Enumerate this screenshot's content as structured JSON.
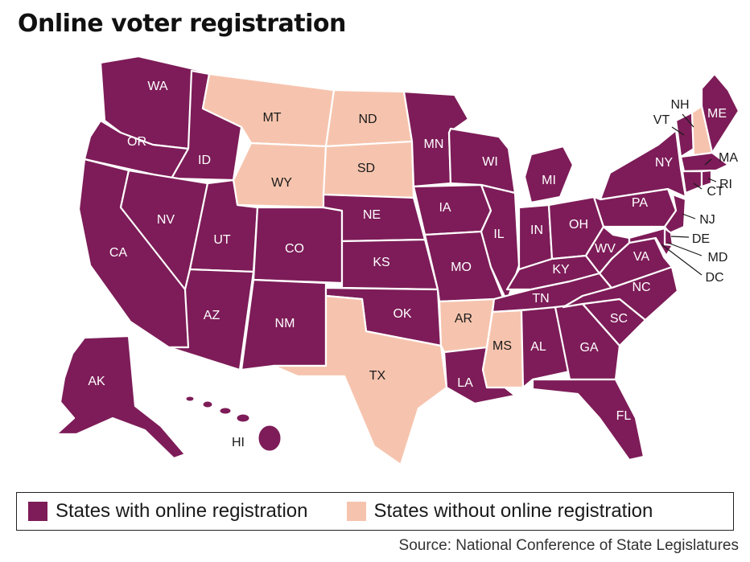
{
  "title": "Online voter registration",
  "colors": {
    "with": "#7d1c58",
    "without": "#f6c4ae"
  },
  "legend": {
    "with": "States with online registration",
    "without": "States without online registration"
  },
  "source": "Source: National Conference of State Legislatures",
  "states_without": [
    "MT",
    "ND",
    "WY",
    "SD",
    "TX",
    "AR",
    "MS",
    "NH"
  ],
  "labels": [
    "WA",
    "OR",
    "CA",
    "ID",
    "NV",
    "MT",
    "WY",
    "UT",
    "AZ",
    "CO",
    "NM",
    "ND",
    "SD",
    "NE",
    "KS",
    "OK",
    "TX",
    "MN",
    "IA",
    "MO",
    "AR",
    "LA",
    "WI",
    "IL",
    "MI",
    "IN",
    "OH",
    "KY",
    "TN",
    "MS",
    "AL",
    "GA",
    "FL",
    "SC",
    "NC",
    "VA",
    "WV",
    "PA",
    "NY",
    "VT",
    "NH",
    "ME",
    "MA",
    "RI",
    "CT",
    "NJ",
    "DE",
    "MD",
    "DC",
    "AK",
    "HI"
  ]
}
